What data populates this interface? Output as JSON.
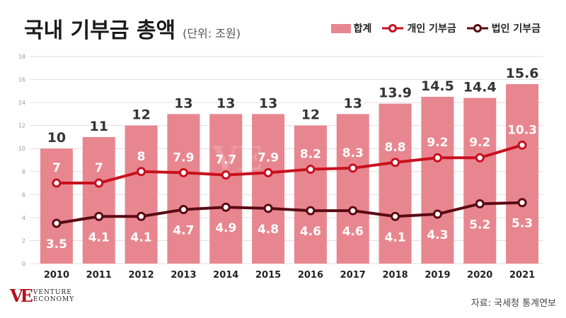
{
  "header": {
    "title": "국내 기부금 총액",
    "unit": "(단위: 조원)"
  },
  "legend": {
    "total": "합계",
    "individual": "개인 기부금",
    "corporate": "법인 기부금"
  },
  "colors": {
    "bar": "#e8868f",
    "individual": "#c8101e",
    "corporate": "#5a0a12",
    "grid": "#e6dcdc"
  },
  "chart_data": {
    "type": "bar",
    "categories": [
      "2010",
      "2011",
      "2012",
      "2013",
      "2014",
      "2015",
      "2016",
      "2017",
      "2018",
      "2019",
      "2020",
      "2021"
    ],
    "ylim": [
      0,
      18
    ],
    "yticks": [
      0,
      2,
      4,
      6,
      8,
      10,
      12,
      14,
      16,
      18
    ],
    "grid": true,
    "legend_position": "top-right",
    "series": [
      {
        "name": "합계",
        "kind": "bar",
        "values": [
          10,
          11,
          12,
          13,
          13,
          13,
          12,
          13,
          13.9,
          14.5,
          14.4,
          15.6
        ],
        "labels": [
          "10",
          "11",
          "12",
          "13",
          "13",
          "13",
          "12",
          "13",
          "13.9",
          "14.5",
          "14.4",
          "15.6"
        ]
      },
      {
        "name": "개인 기부금",
        "kind": "line",
        "values": [
          7,
          7,
          8,
          7.9,
          7.7,
          7.9,
          8.2,
          8.3,
          8.8,
          9.2,
          9.2,
          10.3
        ],
        "labels": [
          "7",
          "7",
          "8",
          "7.9",
          "7.7",
          "7.9",
          "8.2",
          "8.3",
          "8.8",
          "9.2",
          "9.2",
          "10.3"
        ]
      },
      {
        "name": "법인 기부금",
        "kind": "line",
        "values": [
          3.5,
          4.1,
          4.1,
          4.7,
          4.9,
          4.8,
          4.6,
          4.6,
          4.1,
          4.3,
          5.2,
          5.3
        ],
        "labels": [
          "3.5",
          "4.1",
          "4.1",
          "4.7",
          "4.9",
          "4.8",
          "4.6",
          "4.6",
          "4.1",
          "4.3",
          "5.2",
          "5.3"
        ]
      }
    ]
  },
  "footer": {
    "logo_mark": "VE",
    "logo_line1": "VENTURE",
    "logo_line2": "ECONOMY",
    "source": "자료: 국세청 통계연보"
  }
}
